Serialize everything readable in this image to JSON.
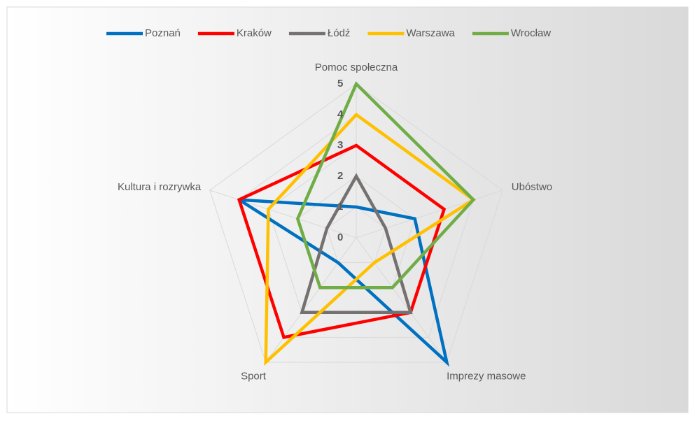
{
  "chart_data": {
    "type": "radar",
    "categories": [
      "Pomoc społeczna",
      "Ubóstwo",
      "Imprezy masowe",
      "Sport",
      "Kultura i rozrywka"
    ],
    "series": [
      {
        "name": "Poznań",
        "color": "#0070c0",
        "values": [
          1,
          2,
          5,
          1,
          4
        ]
      },
      {
        "name": "Kraków",
        "color": "#ff0000",
        "values": [
          3,
          3,
          3,
          4,
          4
        ]
      },
      {
        "name": "Łódź",
        "color": "#767171",
        "values": [
          2,
          1,
          3,
          3,
          1
        ]
      },
      {
        "name": "Warszawa",
        "color": "#ffc000",
        "values": [
          4,
          4,
          1,
          5,
          3
        ]
      },
      {
        "name": "Wrocław",
        "color": "#70ad47",
        "values": [
          5,
          4,
          2,
          2,
          2
        ]
      }
    ],
    "rlim": [
      0,
      5
    ],
    "rticks": [
      0,
      1,
      2,
      3,
      4,
      5
    ],
    "grid": true,
    "legend": "top"
  }
}
